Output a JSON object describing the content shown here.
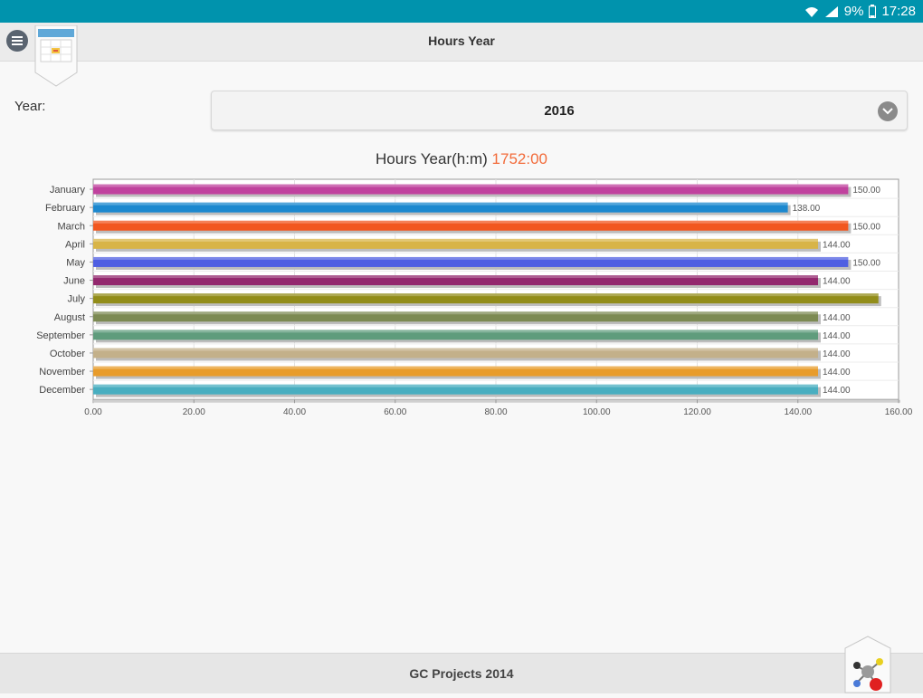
{
  "status_bar": {
    "battery": "9%",
    "time": "17:28",
    "icons": [
      "wifi-icon",
      "signal-icon",
      "battery-icon"
    ]
  },
  "header": {
    "title": "Hours Year",
    "menu_icon": "menu-icon",
    "badge_icon": "calendar-icon"
  },
  "filter": {
    "year_label": "Year:",
    "year_value": "2016"
  },
  "chart_heading": {
    "label": "Hours Year(h:m)",
    "total": "1752:00"
  },
  "chart_data": {
    "type": "bar",
    "orientation": "horizontal",
    "categories": [
      "January",
      "February",
      "March",
      "April",
      "May",
      "June",
      "July",
      "August",
      "September",
      "October",
      "November",
      "December"
    ],
    "values": [
      150.0,
      138.0,
      150.0,
      144.0,
      150.0,
      144.0,
      156.0,
      144.0,
      144.0,
      144.0,
      144.0,
      144.0
    ],
    "value_labels": [
      "150.00",
      "138.00",
      "150.00",
      "144.00",
      "150.00",
      "144.00",
      "",
      "144.00",
      "144.00",
      "144.00",
      "144.00",
      "144.00"
    ],
    "colors": [
      "#c0429e",
      "#1b88cf",
      "#f2571f",
      "#d8b447",
      "#4f5fe2",
      "#93286e",
      "#928d19",
      "#7c8a52",
      "#5f9c7c",
      "#c3b08a",
      "#e89c2b",
      "#48aec0"
    ],
    "xlim": [
      0,
      160
    ],
    "xticks": [
      "0.00",
      "20.00",
      "40.00",
      "60.00",
      "80.00",
      "100.00",
      "120.00",
      "140.00",
      "160.00"
    ],
    "grid": true
  },
  "footer": {
    "credit": "GC Projects 2014",
    "badge_icon": "molecule-icon"
  }
}
